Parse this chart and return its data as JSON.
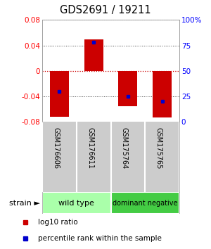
{
  "title": "GDS2691 / 19211",
  "samples": [
    "GSM176606",
    "GSM176611",
    "GSM175764",
    "GSM175765"
  ],
  "log10_ratio": [
    -0.072,
    0.05,
    -0.055,
    -0.073
  ],
  "percentile_rank": [
    30,
    78,
    25,
    20
  ],
  "groups": [
    {
      "label": "wild type",
      "samples": [
        0,
        1
      ],
      "color": "#aaffaa"
    },
    {
      "label": "dominant negative",
      "samples": [
        2,
        3
      ],
      "color": "#44cc44"
    }
  ],
  "ylim": [
    -0.08,
    0.08
  ],
  "yticks_left": [
    -0.08,
    -0.04,
    0,
    0.04,
    0.08
  ],
  "yticks_right": [
    0,
    25,
    50,
    75,
    100
  ],
  "bar_color": "#cc0000",
  "dot_color": "#0000cc",
  "zero_line_color": "#cc0000",
  "grid_color": "#444444",
  "bar_width": 0.55,
  "background_color": "#ffffff",
  "label_area_bg": "#cccccc",
  "strain_label": "strain",
  "legend_items": [
    {
      "label": "log10 ratio",
      "color": "#cc0000"
    },
    {
      "label": "percentile rank within the sample",
      "color": "#0000cc"
    }
  ]
}
